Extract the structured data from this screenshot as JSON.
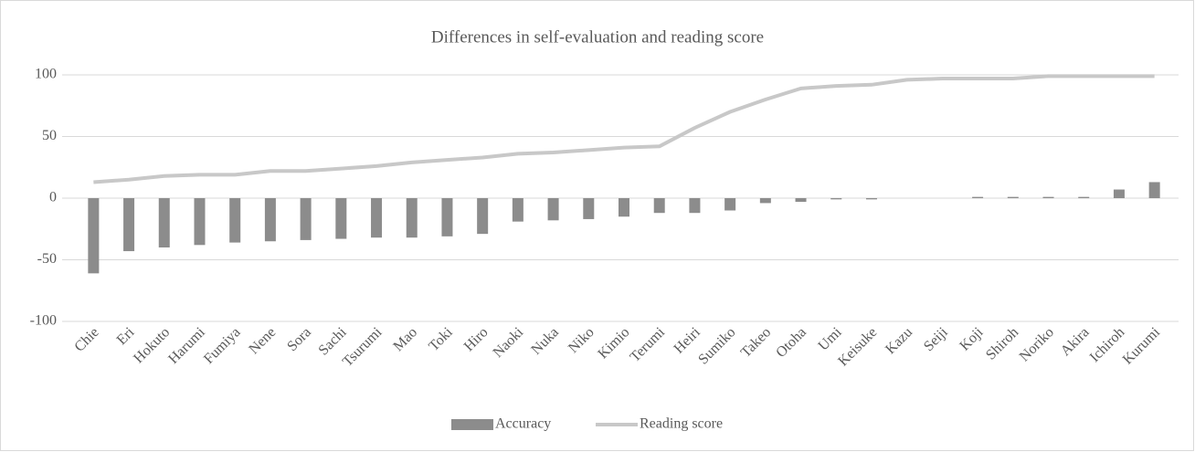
{
  "chart_data": {
    "type": "bar_line",
    "title": "Differences in self-evaluation and reading score",
    "categories": [
      "Chie",
      "Eri",
      "Hokuto",
      "Harumi",
      "Fumiya",
      "Nene",
      "Sora",
      "Sachi",
      "Tsurumi",
      "Mao",
      "Toki",
      "Hiro",
      "Naoki",
      "Nuka",
      "Niko",
      "Kimio",
      "Terumi",
      "Heiri",
      "Sumiko",
      "Takeo",
      "Otoha",
      "Umi",
      "Keisuke",
      "Kazu",
      "Seiji",
      "Koji",
      "Shiroh",
      "Noriko",
      "Akira",
      "Ichiroh",
      "Kurumi"
    ],
    "series": [
      {
        "name": "Accuracy",
        "type": "bar",
        "color": "#8c8c8c",
        "values": [
          -61,
          -43,
          -40,
          -38,
          -36,
          -35,
          -34,
          -33,
          -32,
          -32,
          -31,
          -29,
          -19,
          -18,
          -17,
          -15,
          -12,
          -12,
          -10,
          -4,
          -3,
          -1,
          -1,
          0,
          0,
          1,
          1,
          1,
          1,
          7,
          13
        ]
      },
      {
        "name": "Reading score",
        "type": "line",
        "color": "#c8c8c8",
        "values": [
          13,
          15,
          18,
          19,
          19,
          22,
          22,
          24,
          26,
          29,
          31,
          33,
          36,
          37,
          39,
          41,
          42,
          57,
          70,
          80,
          89,
          91,
          92,
          96,
          97,
          97,
          97,
          99,
          99,
          99,
          99
        ]
      }
    ],
    "ylim": [
      -100,
      100
    ],
    "yticks": [
      -100,
      -50,
      0,
      50,
      100
    ],
    "grid": true,
    "legend": "bottom"
  }
}
